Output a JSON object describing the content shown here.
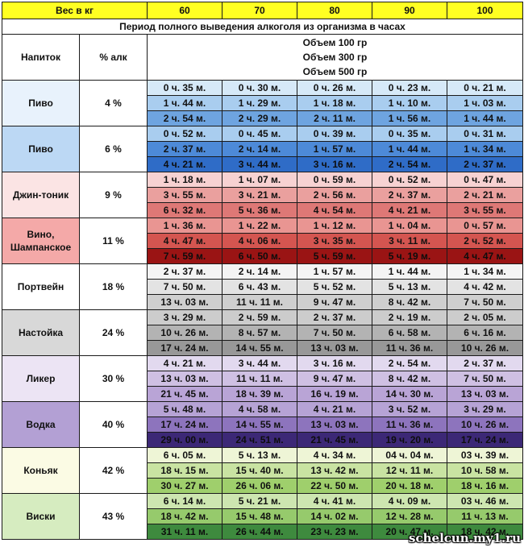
{
  "weight_header": {
    "label": "Вес в кг",
    "columns": [
      "60",
      "70",
      "80",
      "90",
      "100"
    ]
  },
  "period_title": "Период полного выведения алкоголя из организма в часах",
  "header": {
    "drink_label": "Напиток",
    "pct_label": "% алк",
    "volumes": [
      "Объем 100 гр",
      "Объем 300 гр",
      "Объем 500 гр"
    ]
  },
  "groups": [
    {
      "drink": "Пиво",
      "pct": "4 %",
      "label_bg": "#e8f2fc",
      "row_bgs": [
        "#d6e9f8",
        "#a9cdef",
        "#6ea4e0"
      ],
      "rows": [
        [
          "0 ч. 35 м.",
          "0 ч. 30 м.",
          "0 ч. 26 м.",
          "0 ч. 23 м.",
          "0 ч. 21 м."
        ],
        [
          "1 ч. 44 м.",
          "1 ч. 29 м.",
          "1 ч. 18 м.",
          "1 ч. 10 м.",
          "1 ч. 03 м."
        ],
        [
          "2 ч. 54 м.",
          "2 ч. 29 м.",
          "2 ч. 11 м.",
          "1 ч. 56 м.",
          "1 ч. 44 м."
        ]
      ]
    },
    {
      "drink": "Пиво",
      "pct": "6 %",
      "label_bg": "#bcd8f4",
      "row_bgs": [
        "#a9cdef",
        "#4d8ad8",
        "#2f6cc7"
      ],
      "rows": [
        [
          "0 ч. 52 м.",
          "0 ч. 45 м.",
          "0 ч. 39 м.",
          "0 ч. 35 м.",
          "0 ч. 31 м."
        ],
        [
          "2 ч. 37 м.",
          "2 ч. 14 м.",
          "1 ч. 57 м.",
          "1 ч. 44 м.",
          "1 ч. 34 м."
        ],
        [
          "4 ч. 21 м.",
          "3 ч. 44 м.",
          "3 ч. 16 м.",
          "2 ч. 54 м.",
          "2 ч. 37 м."
        ]
      ]
    },
    {
      "drink": "Джин-тоник",
      "pct": "9 %",
      "label_bg": "#fbe4e4",
      "row_bgs": [
        "#f7d2d2",
        "#eaa09e",
        "#de7876"
      ],
      "rows": [
        [
          "1 ч. 18 м.",
          "1 ч. 07 м.",
          "0 ч. 59 м.",
          "0 ч. 52 м.",
          "0 ч. 47 м."
        ],
        [
          "3 ч. 55 м.",
          "3 ч. 21 м.",
          "2 ч. 56 м.",
          "2 ч. 37 м.",
          "2 ч. 21 м."
        ],
        [
          "6 ч. 32 м.",
          "5 ч. 36 м.",
          "4 ч. 54 м.",
          "4 ч. 21 м.",
          "3 ч. 55 м."
        ]
      ]
    },
    {
      "drink": "Вино, Шампанское",
      "pct": "11 %",
      "label_bg": "#f4a9a8",
      "row_bgs": [
        "#e99592",
        "#d45550",
        "#9a1414"
      ],
      "rows": [
        [
          "1 ч. 36 м.",
          "1 ч. 22 м.",
          "1 ч. 12 м.",
          "1 ч. 04 м.",
          "0 ч. 57 м."
        ],
        [
          "4 ч. 47 м.",
          "4 ч. 06 м.",
          "3 ч. 35 м.",
          "3 ч. 11 м.",
          "2 ч. 52 м."
        ],
        [
          "7 ч. 59 м.",
          "6 ч. 50 м.",
          "5 ч. 59 м.",
          "5 ч. 19 м.",
          "4 ч. 47 м."
        ]
      ]
    },
    {
      "drink": "Портвейн",
      "pct": "18 %",
      "label_bg": "#ffffff",
      "row_bgs": [
        "#f4f4f4",
        "#e3e3e3",
        "#cfcfcf"
      ],
      "rows": [
        [
          "2 ч. 37 м.",
          "2 ч. 14 м.",
          "1 ч. 57 м.",
          "1 ч. 44 м.",
          "1 ч. 34 м."
        ],
        [
          "7 ч. 50 м.",
          "6 ч. 43 м.",
          "5 ч. 52 м.",
          "5 ч. 13 м.",
          "4 ч. 42 м."
        ],
        [
          "13 ч. 03 м.",
          "11 ч. 11 м.",
          "9 ч. 47 м.",
          "8 ч. 42 м.",
          "7 ч. 50 м."
        ]
      ]
    },
    {
      "drink": "Настойка",
      "pct": "24 %",
      "label_bg": "#d8d8d8",
      "row_bgs": [
        "#cccccc",
        "#b3b3b3",
        "#989898"
      ],
      "rows": [
        [
          "3 ч. 29 м.",
          "2 ч. 59 м.",
          "2 ч. 37 м.",
          "2 ч. 19 м.",
          "2 ч. 05 м."
        ],
        [
          "10 ч. 26 м.",
          "8 ч. 57 м.",
          "7 ч. 50 м.",
          "6 ч. 58 м.",
          "6 ч. 16 м."
        ],
        [
          "17 ч. 24 м.",
          "14 ч. 55 м.",
          "13 ч. 03 м.",
          "11 ч. 36 м.",
          "10 ч. 26 м."
        ]
      ]
    },
    {
      "drink": "Ликер",
      "pct": "30 %",
      "label_bg": "#ece4f4",
      "row_bgs": [
        "#e2d9ef",
        "#cfc0e3",
        "#b9a4d6"
      ],
      "rows": [
        [
          "4 ч. 21 м.",
          "3 ч. 44 м.",
          "3 ч. 16 м.",
          "2 ч. 54 м.",
          "2 ч. 37 м."
        ],
        [
          "13 ч. 03 м.",
          "11 ч. 11 м.",
          "9 ч. 47 м.",
          "8 ч. 42 м.",
          "7 ч. 50 м."
        ],
        [
          "21 ч. 45 м.",
          "18 ч. 39 м.",
          "16 ч. 19 м.",
          "14 ч. 30 м.",
          "13 ч. 03 м."
        ]
      ]
    },
    {
      "drink": "Водка",
      "pct": "40 %",
      "label_bg": "#b3a0d4",
      "row_bgs": [
        "#b6a3d5",
        "#8d74bd",
        "#3c2876"
      ],
      "rows": [
        [
          "5 ч. 48 м.",
          "4 ч. 58 м.",
          "4 ч. 21 м.",
          "3 ч. 52 м.",
          "3 ч. 29 м."
        ],
        [
          "17 ч. 24 м.",
          "14 ч. 55 м.",
          "13 ч. 03 м.",
          "11 ч. 36 м.",
          "10 ч. 26 м."
        ],
        [
          "29 ч. 00 м.",
          "24 ч. 51 м.",
          "21 ч. 45 м.",
          "19 ч. 20 м.",
          "17 ч. 24 м."
        ]
      ]
    },
    {
      "drink": "Коньяк",
      "pct": "42 %",
      "label_bg": "#fbfbe4",
      "row_bgs": [
        "#eef5d6",
        "#c9e3a2",
        "#9fcf6c"
      ],
      "rows": [
        [
          "6 ч. 05 м.",
          "5 ч. 13 м.",
          "4 ч. 34 м.",
          "04 ч. 04 м.",
          "03 ч. 39 м."
        ],
        [
          "18 ч. 15 м.",
          "15 ч. 40 м.",
          "13 ч. 42 м.",
          "12 ч. 11 м.",
          "10 ч. 58 м."
        ],
        [
          "30 ч. 27 м.",
          "26 ч. 06 м.",
          "22 ч. 50 м.",
          "20 ч. 18 м.",
          "18 ч. 16 м."
        ]
      ]
    },
    {
      "drink": "Виски",
      "pct": "43 %",
      "label_bg": "#d6ecc0",
      "row_bgs": [
        "#cde6b0",
        "#96ca6c",
        "#3e8a3e"
      ],
      "rows": [
        [
          "6 ч. 14 м.",
          "5 ч. 21 м.",
          "4 ч. 41 м.",
          "4 ч. 09 м.",
          "03 ч. 46 м."
        ],
        [
          "18 ч. 42 м.",
          "15 ч. 48 м.",
          "14 ч. 02 м.",
          "12 ч. 28 м.",
          "11 ч. 13 м."
        ],
        [
          "31 ч. 11 м.",
          "26 ч. 44 м.",
          "23 ч. 23 м.",
          "20 ч. 47 м.",
          "18 ч. 42 м."
        ]
      ]
    }
  ],
  "watermark": "schelcun.my1.ru"
}
